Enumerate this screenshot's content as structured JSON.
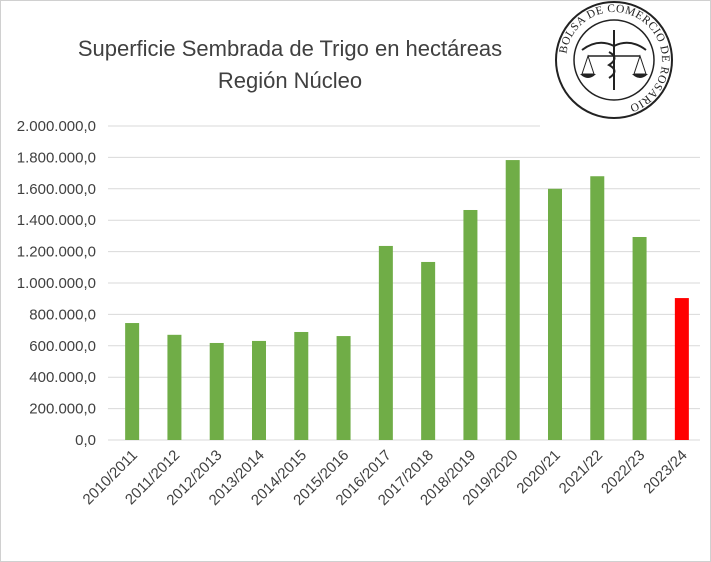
{
  "chart_data": {
    "type": "bar",
    "title": "Superficie  Sembrada  de Trigo en hectáreas",
    "subtitle": "Región Núcleo",
    "xlabel": "",
    "ylabel": "",
    "ylim": [
      0,
      2000000
    ],
    "yticks": [
      0,
      200000,
      400000,
      600000,
      800000,
      1000000,
      1200000,
      1400000,
      1600000,
      1800000,
      2000000
    ],
    "ytick_labels": [
      "0,0",
      "200.000,0",
      "400.000,0",
      "600.000,0",
      "800.000,0",
      "1.000.000,0",
      "1.200.000,0",
      "1.400.000,0",
      "1.600.000,0",
      "1.800.000,0",
      "2.000.000,0"
    ],
    "grid": true,
    "legend": "none",
    "categories": [
      "2010/2011",
      "2011/2012",
      "2012/2013",
      "2013/2014",
      "2014/2015",
      "2015/2016",
      "2016/2017",
      "2017/2018",
      "2018/2019",
      "2019/2020",
      "2020/21",
      "2021/22",
      "2022/23",
      "2023/24"
    ],
    "values": [
      745000,
      670000,
      618000,
      631000,
      688000,
      662000,
      1236000,
      1134000,
      1465000,
      1783000,
      1600000,
      1680000,
      1293000,
      904000
    ],
    "colors": [
      "#70ad47",
      "#70ad47",
      "#70ad47",
      "#70ad47",
      "#70ad47",
      "#70ad47",
      "#70ad47",
      "#70ad47",
      "#70ad47",
      "#70ad47",
      "#70ad47",
      "#70ad47",
      "#70ad47",
      "#ff0000"
    ]
  },
  "logo": {
    "text": "BOLSA DE COMERCIO DE ROSARIO"
  }
}
